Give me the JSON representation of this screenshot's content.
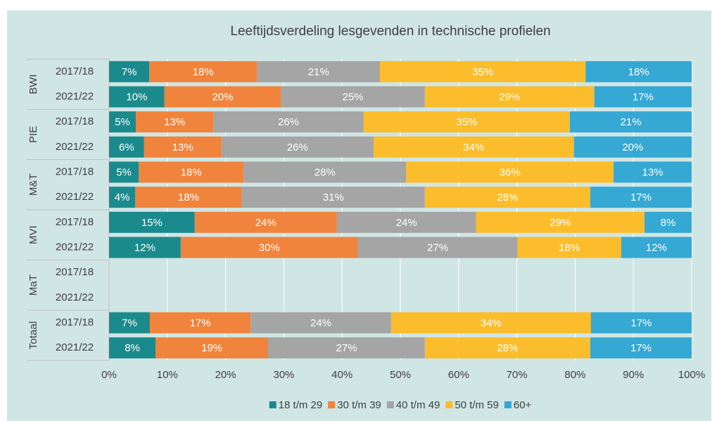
{
  "chart_data": {
    "type": "stacked-bar-horizontal",
    "title": "Leeftijdsverdeling lesgevenden in technische profielen",
    "groups": [
      "BWI",
      "PIE",
      "M&T",
      "MVI",
      "MaT",
      "Totaal"
    ],
    "categories": [
      "2017/18",
      "2021/22",
      "2017/18",
      "2021/22",
      "2017/18",
      "2021/22",
      "2017/18",
      "2021/22",
      "2017/18",
      "2021/22",
      "2017/18",
      "2021/22"
    ],
    "series": [
      {
        "name": "18 t/m 29",
        "color": "#1b8a8c",
        "values": [
          6.9,
          9.5,
          4.6,
          6.0,
          5.1,
          4.5,
          14.7,
          12.3,
          null,
          null,
          7.0,
          8.0
        ],
        "value_labels": [
          "7%",
          "10%",
          "5%",
          "6%",
          "5%",
          "4%",
          "15%",
          "12%",
          null,
          null,
          "7%",
          "8%"
        ]
      },
      {
        "name": "30 t/m 39",
        "color": "#f0843c",
        "values": [
          18.5,
          20.0,
          13.3,
          13.3,
          18.0,
          18.3,
          24.4,
          30.4,
          null,
          null,
          17.3,
          19.3
        ],
        "value_labels": [
          "18%",
          "20%",
          "13%",
          "13%",
          "18%",
          "18%",
          "24%",
          "30%",
          null,
          null,
          "17%",
          "19%"
        ]
      },
      {
        "name": "40 t/m 49",
        "color": "#a5a5a5",
        "values": [
          21.1,
          24.7,
          25.8,
          26.1,
          27.9,
          31.4,
          23.9,
          27.4,
          null,
          null,
          24.1,
          26.9
        ],
        "value_labels": [
          "21%",
          "25%",
          "26%",
          "26%",
          "28%",
          "31%",
          "24%",
          "27%",
          null,
          null,
          "24%",
          "27%"
        ]
      },
      {
        "name": "50 t/m 59",
        "color": "#fbbd2b",
        "values": [
          35.3,
          29.1,
          35.4,
          34.4,
          35.6,
          28.4,
          28.9,
          17.8,
          null,
          null,
          34.3,
          28.4
        ],
        "value_labels": [
          "35%",
          "29%",
          "35%",
          "34%",
          "36%",
          "28%",
          "29%",
          "18%",
          null,
          null,
          "34%",
          "28%"
        ]
      },
      {
        "name": "60+",
        "color": "#35a8d4",
        "values": [
          18.2,
          16.7,
          20.9,
          20.2,
          13.4,
          17.4,
          8.1,
          12.1,
          null,
          null,
          17.3,
          17.4
        ],
        "value_labels": [
          "18%",
          "17%",
          "21%",
          "20%",
          "13%",
          "17%",
          "8%",
          "12%",
          null,
          null,
          "17%",
          "17%"
        ]
      }
    ],
    "xlim": [
      0,
      100
    ],
    "xticks": [
      {
        "value": 0,
        "label": "0%"
      },
      {
        "value": 10,
        "label": "10%"
      },
      {
        "value": 20,
        "label": "20%"
      },
      {
        "value": 30,
        "label": "30%"
      },
      {
        "value": 40,
        "label": "40%"
      },
      {
        "value": 50,
        "label": "50%"
      },
      {
        "value": 60,
        "label": "60%"
      },
      {
        "value": 70,
        "label": "70%"
      },
      {
        "value": 80,
        "label": "80%"
      },
      {
        "value": 90,
        "label": "90%"
      },
      {
        "value": 100,
        "label": "100%"
      }
    ],
    "grid": true,
    "legend": "bottom"
  }
}
